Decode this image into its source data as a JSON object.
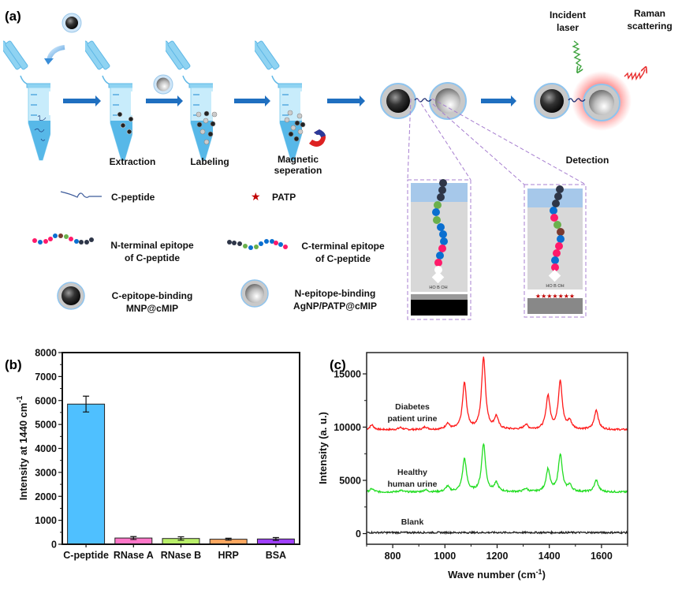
{
  "panel_a": {
    "label": "(a)",
    "steps": [
      "Extraction",
      "Labeling",
      "Magnetic",
      "seperation",
      "Detection"
    ],
    "laser": [
      "Incident",
      "laser"
    ],
    "raman": [
      "Raman",
      "scattering"
    ],
    "legend": {
      "c_peptide": "C-peptide",
      "patp": "PATP",
      "n_terminal": [
        "N-terminal epitope",
        "of C-peptide"
      ],
      "c_terminal": [
        "C-terminal epitope",
        "of C-peptide"
      ],
      "mnp": [
        "C-epitope-binding",
        "MNP@cMIP"
      ],
      "agnp": [
        "N-epitope-binding",
        "AgNP/PATP@cMIP"
      ]
    },
    "inset_chem": "HO B OH",
    "colors": {
      "tube": "#8fd3f2",
      "arrow": "#1f6fc0",
      "dashed": "#a77fd0",
      "laser": "#3fa33f",
      "raman": "#e83030",
      "patp": "#c00000"
    }
  },
  "chart_data": [
    {
      "panel": "(b)",
      "type": "bar",
      "categories": [
        "C-peptide",
        "RNase A",
        "RNase B",
        "HRP",
        "BSA"
      ],
      "values": [
        5850,
        260,
        240,
        210,
        220
      ],
      "errors": [
        330,
        60,
        70,
        40,
        60
      ],
      "colors": [
        "#4fc0ff",
        "#ff77c8",
        "#b9ef6a",
        "#ffa860",
        "#a040ff"
      ],
      "ylabel": "Intensity at 1440 cm",
      "ylabel_sup": "-1",
      "ylim": [
        0,
        8000
      ],
      "yticks": [
        0,
        1000,
        2000,
        3000,
        4000,
        5000,
        6000,
        7000,
        8000
      ],
      "grid": false
    },
    {
      "panel": "(c)",
      "type": "line",
      "xlabel": "Wave number (cm",
      "xlabel_sup": "-1",
      "xlabel_end": ")",
      "ylabel": "Intensity (a. u.)",
      "xlim": [
        700,
        1700
      ],
      "ylim": [
        -1000,
        17000
      ],
      "xticks": [
        800,
        1000,
        1200,
        1400,
        1600
      ],
      "yticks": [
        0,
        5000,
        10000,
        15000
      ],
      "grid": false,
      "series": [
        {
          "name": "Diabetes patient urine",
          "label_lines": [
            "Diabetes",
            "patient urine"
          ],
          "color": "#ff1a1a",
          "baseline": 9750,
          "peaks": [
            [
              720,
              10200
            ],
            [
              830,
              9950
            ],
            [
              925,
              10000
            ],
            [
              1010,
              10300
            ],
            [
              1075,
              14100
            ],
            [
              1148,
              16500
            ],
            [
              1197,
              10900
            ],
            [
              1310,
              10200
            ],
            [
              1395,
              12900
            ],
            [
              1442,
              14300
            ],
            [
              1478,
              10500
            ],
            [
              1580,
              11600
            ]
          ]
        },
        {
          "name": "Healthy human urine",
          "label_lines": [
            "Healthy",
            "human urine"
          ],
          "color": "#22dd22",
          "baseline": 3900,
          "peaks": [
            [
              720,
              4200
            ],
            [
              830,
              4050
            ],
            [
              925,
              4100
            ],
            [
              1010,
              4400
            ],
            [
              1075,
              7000
            ],
            [
              1148,
              8400
            ],
            [
              1197,
              4700
            ],
            [
              1310,
              4200
            ],
            [
              1395,
              6000
            ],
            [
              1442,
              7400
            ],
            [
              1478,
              4500
            ],
            [
              1580,
              5000
            ]
          ]
        },
        {
          "name": "Blank",
          "label_lines": [
            "Blank"
          ],
          "color": "#222222",
          "baseline": 100,
          "peaks": []
        }
      ]
    }
  ]
}
